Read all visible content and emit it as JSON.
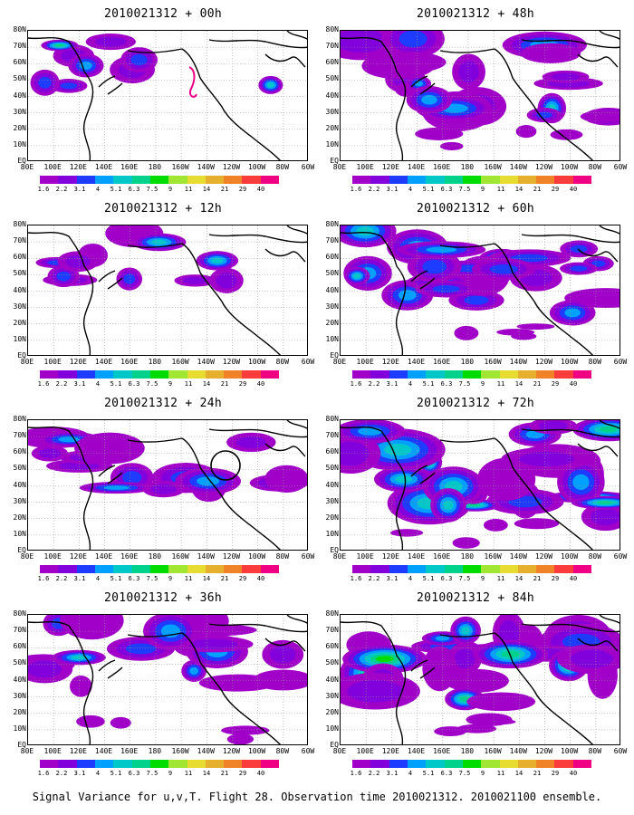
{
  "figure": {
    "caption": "Signal Variance for u,v,T. Flight 28. Observation time 2010021312. 2010021100 ensemble.",
    "lat_labels": [
      "80N",
      "70N",
      "60N",
      "50N",
      "40N",
      "30N",
      "20N",
      "10N",
      "EQ"
    ],
    "lon_labels": [
      "80E",
      "100E",
      "120E",
      "140E",
      "160E",
      "180",
      "160W",
      "140W",
      "120W",
      "100W",
      "80W",
      "60W"
    ],
    "colorbar": {
      "labels": [
        "1.6",
        "2.2",
        "3.1",
        "4",
        "5.1",
        "6.3",
        "7.5",
        "9",
        "11",
        "14",
        "21",
        "29",
        "40"
      ],
      "colors": [
        "#a000c8",
        "#8200dc",
        "#1e3cff",
        "#00a0ff",
        "#00c8c8",
        "#00d28c",
        "#00dc00",
        "#a0e632",
        "#e6dc32",
        "#e6af2d",
        "#f08228",
        "#fa3c3c",
        "#f00082"
      ]
    },
    "panels": [
      {
        "title": "2010021312 + 00h",
        "coverage": 0.12,
        "intensity": 0.55,
        "annotation": "red-contour"
      },
      {
        "title": "2010021312 + 12h",
        "coverage": 0.22,
        "intensity": 0.4,
        "annotation": ""
      },
      {
        "title": "2010021312 + 24h",
        "coverage": 0.4,
        "intensity": 0.35,
        "annotation": "circle"
      },
      {
        "title": "2010021312 + 36h",
        "coverage": 0.52,
        "intensity": 0.4,
        "annotation": ""
      },
      {
        "title": "2010021312 + 48h",
        "coverage": 0.62,
        "intensity": 0.48,
        "annotation": ""
      },
      {
        "title": "2010021312 + 60h",
        "coverage": 0.7,
        "intensity": 0.55,
        "annotation": ""
      },
      {
        "title": "2010021312 + 72h",
        "coverage": 0.78,
        "intensity": 0.68,
        "annotation": ""
      },
      {
        "title": "2010021312 + 84h",
        "coverage": 0.85,
        "intensity": 0.75,
        "annotation": ""
      }
    ]
  }
}
